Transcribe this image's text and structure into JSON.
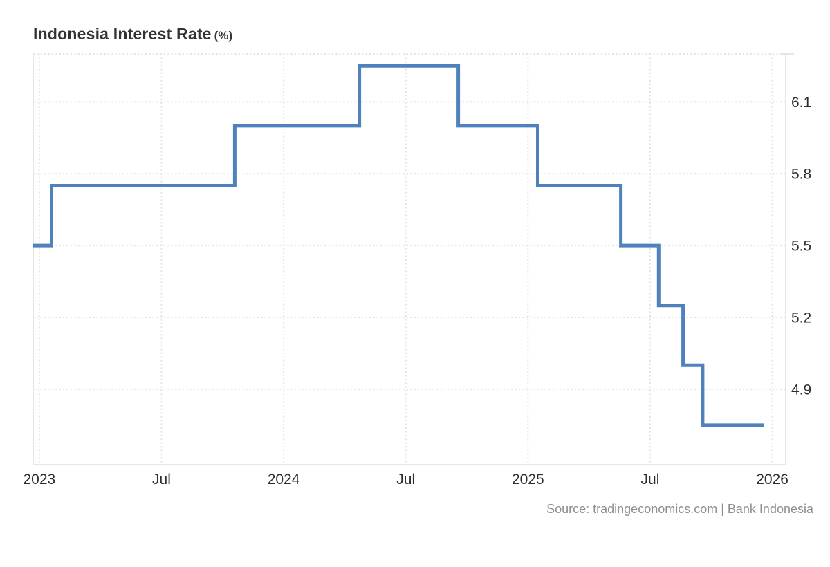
{
  "title": {
    "main": "Indonesia Interest Rate",
    "unit": "(%)"
  },
  "source": "Source: tradingeconomics.com | Bank Indonesia",
  "chart_data": {
    "type": "line",
    "step": true,
    "title": "Indonesia Interest Rate (%)",
    "xlabel": "",
    "ylabel": "%",
    "series": [
      {
        "name": "Indonesia Interest Rate",
        "points": [
          [
            2022.975,
            5.5
          ],
          [
            2023.05,
            5.75
          ],
          [
            2023.8,
            6.0
          ],
          [
            2024.31,
            6.25
          ],
          [
            2024.715,
            6.0
          ],
          [
            2025.04,
            5.75
          ],
          [
            2025.38,
            5.5
          ],
          [
            2025.535,
            5.25
          ],
          [
            2025.635,
            5.0
          ],
          [
            2025.715,
            4.75
          ],
          [
            2025.965,
            4.75
          ]
        ]
      }
    ],
    "x_ticks": [
      {
        "pos": 2023.0,
        "label": "2023"
      },
      {
        "pos": 2023.5,
        "label": "Jul"
      },
      {
        "pos": 2024.0,
        "label": "2024"
      },
      {
        "pos": 2024.5,
        "label": "Jul"
      },
      {
        "pos": 2025.0,
        "label": "2025"
      },
      {
        "pos": 2025.5,
        "label": "Jul"
      },
      {
        "pos": 2026.0,
        "label": "2026"
      }
    ],
    "y_ticks": [
      {
        "value": 6.1,
        "label": "6.1"
      },
      {
        "value": 5.8,
        "label": "5.8"
      },
      {
        "value": 5.5,
        "label": "5.5"
      },
      {
        "value": 5.2,
        "label": "5.2"
      },
      {
        "value": 4.9,
        "label": "4.9"
      }
    ],
    "x_range": [
      2022.975,
      2026.055
    ],
    "y_range": [
      4.585,
      6.3
    ],
    "grid": true,
    "legend": "none",
    "line_color": "#4f81bd",
    "grid_color": "#e2e2e2",
    "axis_line_color": "#e6e6e6",
    "tick_label_color": "#2d2d2d"
  }
}
